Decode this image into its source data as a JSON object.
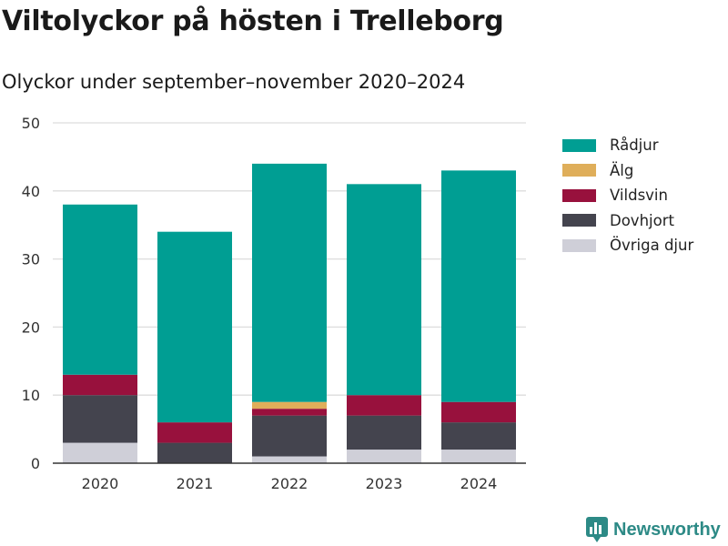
{
  "title": "Viltolyckor på hösten i Trelleborg",
  "subtitle": "Olyckor under september–november 2020–2024",
  "brand": {
    "name": "Newsworthy",
    "icon": "newsworthy-logo-icon"
  },
  "chart_data": {
    "type": "bar",
    "stacked": true,
    "categories": [
      "2020",
      "2021",
      "2022",
      "2023",
      "2024"
    ],
    "series": [
      {
        "name": "Övriga djur",
        "color": "#cfcfd8",
        "values": [
          3,
          0,
          1,
          2,
          2
        ]
      },
      {
        "name": "Dovhjort",
        "color": "#44444e",
        "values": [
          7,
          3,
          6,
          5,
          4
        ]
      },
      {
        "name": "Vildsvin",
        "color": "#98113d",
        "values": [
          3,
          3,
          1,
          3,
          3
        ]
      },
      {
        "name": "Älg",
        "color": "#dfae5a",
        "values": [
          0,
          0,
          1,
          0,
          0
        ]
      },
      {
        "name": "Rådjur",
        "color": "#009e93",
        "values": [
          25,
          28,
          35,
          31,
          34
        ]
      }
    ],
    "legend_order": [
      "Rådjur",
      "Älg",
      "Vildsvin",
      "Dovhjort",
      "Övriga djur"
    ],
    "y_ticks": [
      0,
      10,
      20,
      30,
      40,
      50
    ],
    "ylim": [
      0,
      50
    ],
    "grid": true,
    "legend_position": "right"
  }
}
